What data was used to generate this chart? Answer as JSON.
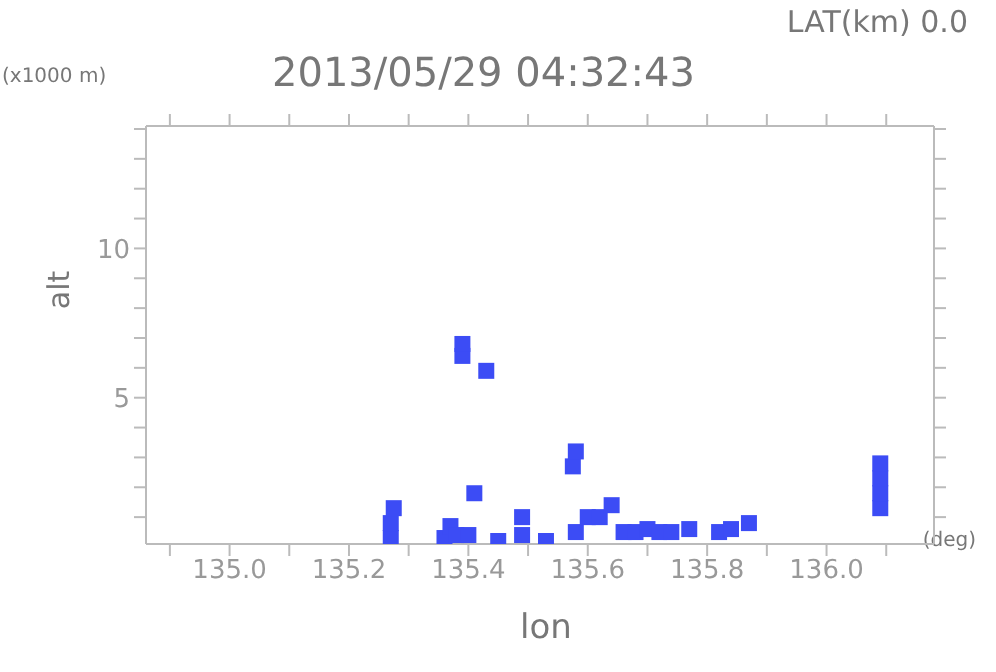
{
  "chart_data": {
    "type": "scatter",
    "title": "2013/05/29 04:32:43",
    "subtitle": "LAT(km) 0.0",
    "xlabel": "lon",
    "ylabel": "alt",
    "annotations": [
      "(x1000 m)",
      "(deg)"
    ],
    "series": [
      {
        "color": "#3c4cf5",
        "x": [
          135.27,
          135.27,
          135.275,
          135.36,
          135.37,
          135.38,
          135.4,
          135.39,
          135.39,
          135.43,
          135.41,
          135.45,
          135.49,
          135.49,
          135.53,
          135.575,
          135.58,
          135.58,
          135.6,
          135.62,
          135.64,
          135.66,
          135.68,
          135.7,
          135.72,
          135.74,
          135.77,
          135.82,
          135.84,
          135.87,
          136.09,
          136.09,
          136.09,
          136.09
        ],
        "values": [
          0.3,
          0.8,
          1.3,
          0.3,
          0.7,
          0.4,
          0.4,
          6.4,
          6.8,
          5.9,
          1.8,
          0.2,
          1.0,
          0.4,
          0.2,
          2.7,
          3.2,
          0.5,
          1.0,
          1.0,
          1.4,
          0.5,
          0.5,
          0.6,
          0.5,
          0.5,
          0.6,
          0.5,
          0.6,
          0.8,
          1.3,
          1.8,
          2.3,
          2.8
        ]
      }
    ],
    "xlim": [
      134.86,
      136.18
    ],
    "xticks": [
      {
        "value": 134.9,
        "label": null
      },
      {
        "value": 135,
        "label": "135.0"
      },
      {
        "value": 135.1,
        "label": null
      },
      {
        "value": 135.2,
        "label": "135.2"
      },
      {
        "value": 135.3,
        "label": null
      },
      {
        "value": 135.4,
        "label": "135.4"
      },
      {
        "value": 135.5,
        "label": null
      },
      {
        "value": 135.6,
        "label": "135.6"
      },
      {
        "value": 135.7,
        "label": null
      },
      {
        "value": 135.8,
        "label": "135.8"
      },
      {
        "value": 135.9,
        "label": null
      },
      {
        "value": 136,
        "label": "136.0"
      },
      {
        "value": 136.1,
        "label": null
      }
    ],
    "ylim": [
      0.1,
      14.1
    ],
    "yticks": [
      {
        "value": 1,
        "label": null
      },
      {
        "value": 2,
        "label": null
      },
      {
        "value": 3,
        "label": null
      },
      {
        "value": 4,
        "label": null
      },
      5,
      {
        "value": 6,
        "label": null
      },
      {
        "value": 7,
        "label": null
      },
      {
        "value": 8,
        "label": null
      },
      {
        "value": 9,
        "label": null
      },
      10,
      {
        "value": 11,
        "label": null
      },
      {
        "value": 12,
        "label": null
      },
      {
        "value": 13,
        "label": null
      },
      {
        "value": 14,
        "label": null
      }
    ],
    "marker": "square",
    "legend": false
  }
}
